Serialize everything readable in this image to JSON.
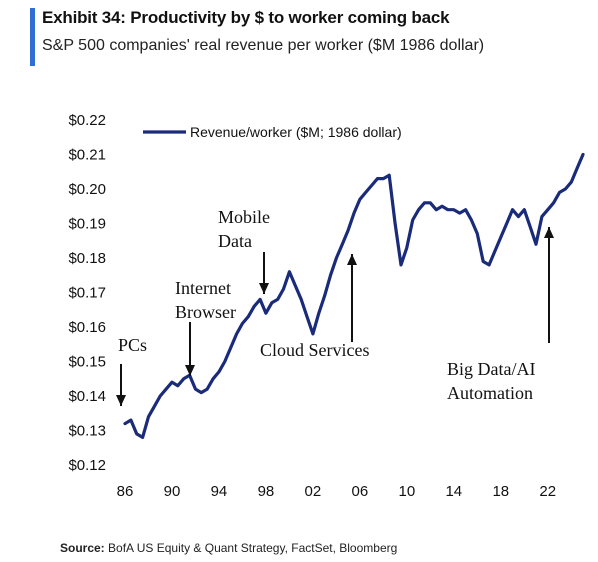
{
  "header": {
    "title": "Exhibit 34: Productivity by $ to worker coming back",
    "subtitle": "S&P 500 companies' real revenue per worker ($M 1986 dollar)"
  },
  "footer": {
    "source_label": "Source:",
    "source_text": "BofA US Equity & Quant Strategy, FactSet, Bloomberg"
  },
  "colors": {
    "accent": "#2f6fd3",
    "series": "#1a2b7a"
  },
  "chart_data": {
    "type": "line",
    "title": "",
    "xlabel": "",
    "ylabel": "",
    "ylim": [
      0.12,
      0.22
    ],
    "xlim": [
      1986,
      2025
    ],
    "grid": false,
    "legend_position": "top-left",
    "y_ticks": [
      "$0.22",
      "$0.21",
      "$0.20",
      "$0.19",
      "$0.18",
      "$0.17",
      "$0.16",
      "$0.15",
      "$0.14",
      "$0.13",
      "$0.12"
    ],
    "x_ticks": [
      "86",
      "90",
      "94",
      "98",
      "02",
      "06",
      "10",
      "14",
      "18",
      "22"
    ],
    "series": [
      {
        "name": "Revenue/worker ($M; 1986 dollar)",
        "x": [
          1986.0,
          1986.5,
          1987.0,
          1987.5,
          1988.0,
          1988.5,
          1989.0,
          1989.5,
          1990.0,
          1990.5,
          1991.0,
          1991.5,
          1992.0,
          1992.5,
          1993.0,
          1993.5,
          1994.0,
          1994.5,
          1995.0,
          1995.5,
          1996.0,
          1996.5,
          1997.0,
          1997.5,
          1998.0,
          1998.5,
          1999.0,
          1999.5,
          2000.0,
          2000.5,
          2001.0,
          2001.5,
          2002.0,
          2002.5,
          2003.0,
          2003.5,
          2004.0,
          2004.5,
          2005.0,
          2005.5,
          2006.0,
          2006.5,
          2007.0,
          2007.5,
          2008.0,
          2008.5,
          2009.0,
          2009.5,
          2010.0,
          2010.5,
          2011.0,
          2011.5,
          2012.0,
          2012.5,
          2013.0,
          2013.5,
          2014.0,
          2014.5,
          2015.0,
          2015.5,
          2016.0,
          2016.5,
          2017.0,
          2017.5,
          2018.0,
          2018.5,
          2019.0,
          2019.5,
          2020.0,
          2020.5,
          2021.0,
          2021.5,
          2022.0,
          2022.5,
          2023.0,
          2023.5,
          2024.0,
          2024.5,
          2025.0
        ],
        "values": [
          0.132,
          0.133,
          0.129,
          0.128,
          0.134,
          0.137,
          0.14,
          0.142,
          0.144,
          0.143,
          0.145,
          0.146,
          0.142,
          0.141,
          0.142,
          0.145,
          0.147,
          0.15,
          0.154,
          0.158,
          0.161,
          0.163,
          0.166,
          0.168,
          0.164,
          0.167,
          0.168,
          0.171,
          0.176,
          0.172,
          0.168,
          0.163,
          0.158,
          0.164,
          0.169,
          0.175,
          0.18,
          0.184,
          0.188,
          0.193,
          0.197,
          0.199,
          0.201,
          0.203,
          0.203,
          0.204,
          0.19,
          0.178,
          0.183,
          0.191,
          0.194,
          0.196,
          0.196,
          0.194,
          0.195,
          0.194,
          0.194,
          0.193,
          0.194,
          0.191,
          0.187,
          0.179,
          0.178,
          0.182,
          0.186,
          0.19,
          0.194,
          0.192,
          0.194,
          0.189,
          0.184,
          0.192,
          0.194,
          0.196,
          0.199,
          0.2,
          0.202,
          0.206,
          0.21
        ]
      }
    ],
    "annotations": [
      {
        "lines": [
          "PCs"
        ],
        "x": 1986.2,
        "y": 0.133
      },
      {
        "lines": [
          "Internet",
          "Browser"
        ],
        "x": 1992.0,
        "y": 0.141
      },
      {
        "lines": [
          "Mobile",
          "Data"
        ],
        "x": 1998.0,
        "y": 0.167
      },
      {
        "lines": [
          "Cloud Services"
        ],
        "x": 2006.0,
        "y": 0.157
      },
      {
        "lines": [
          "Big Data/AI",
          "Automation"
        ],
        "x": 2022.0,
        "y": 0.193
      }
    ]
  }
}
